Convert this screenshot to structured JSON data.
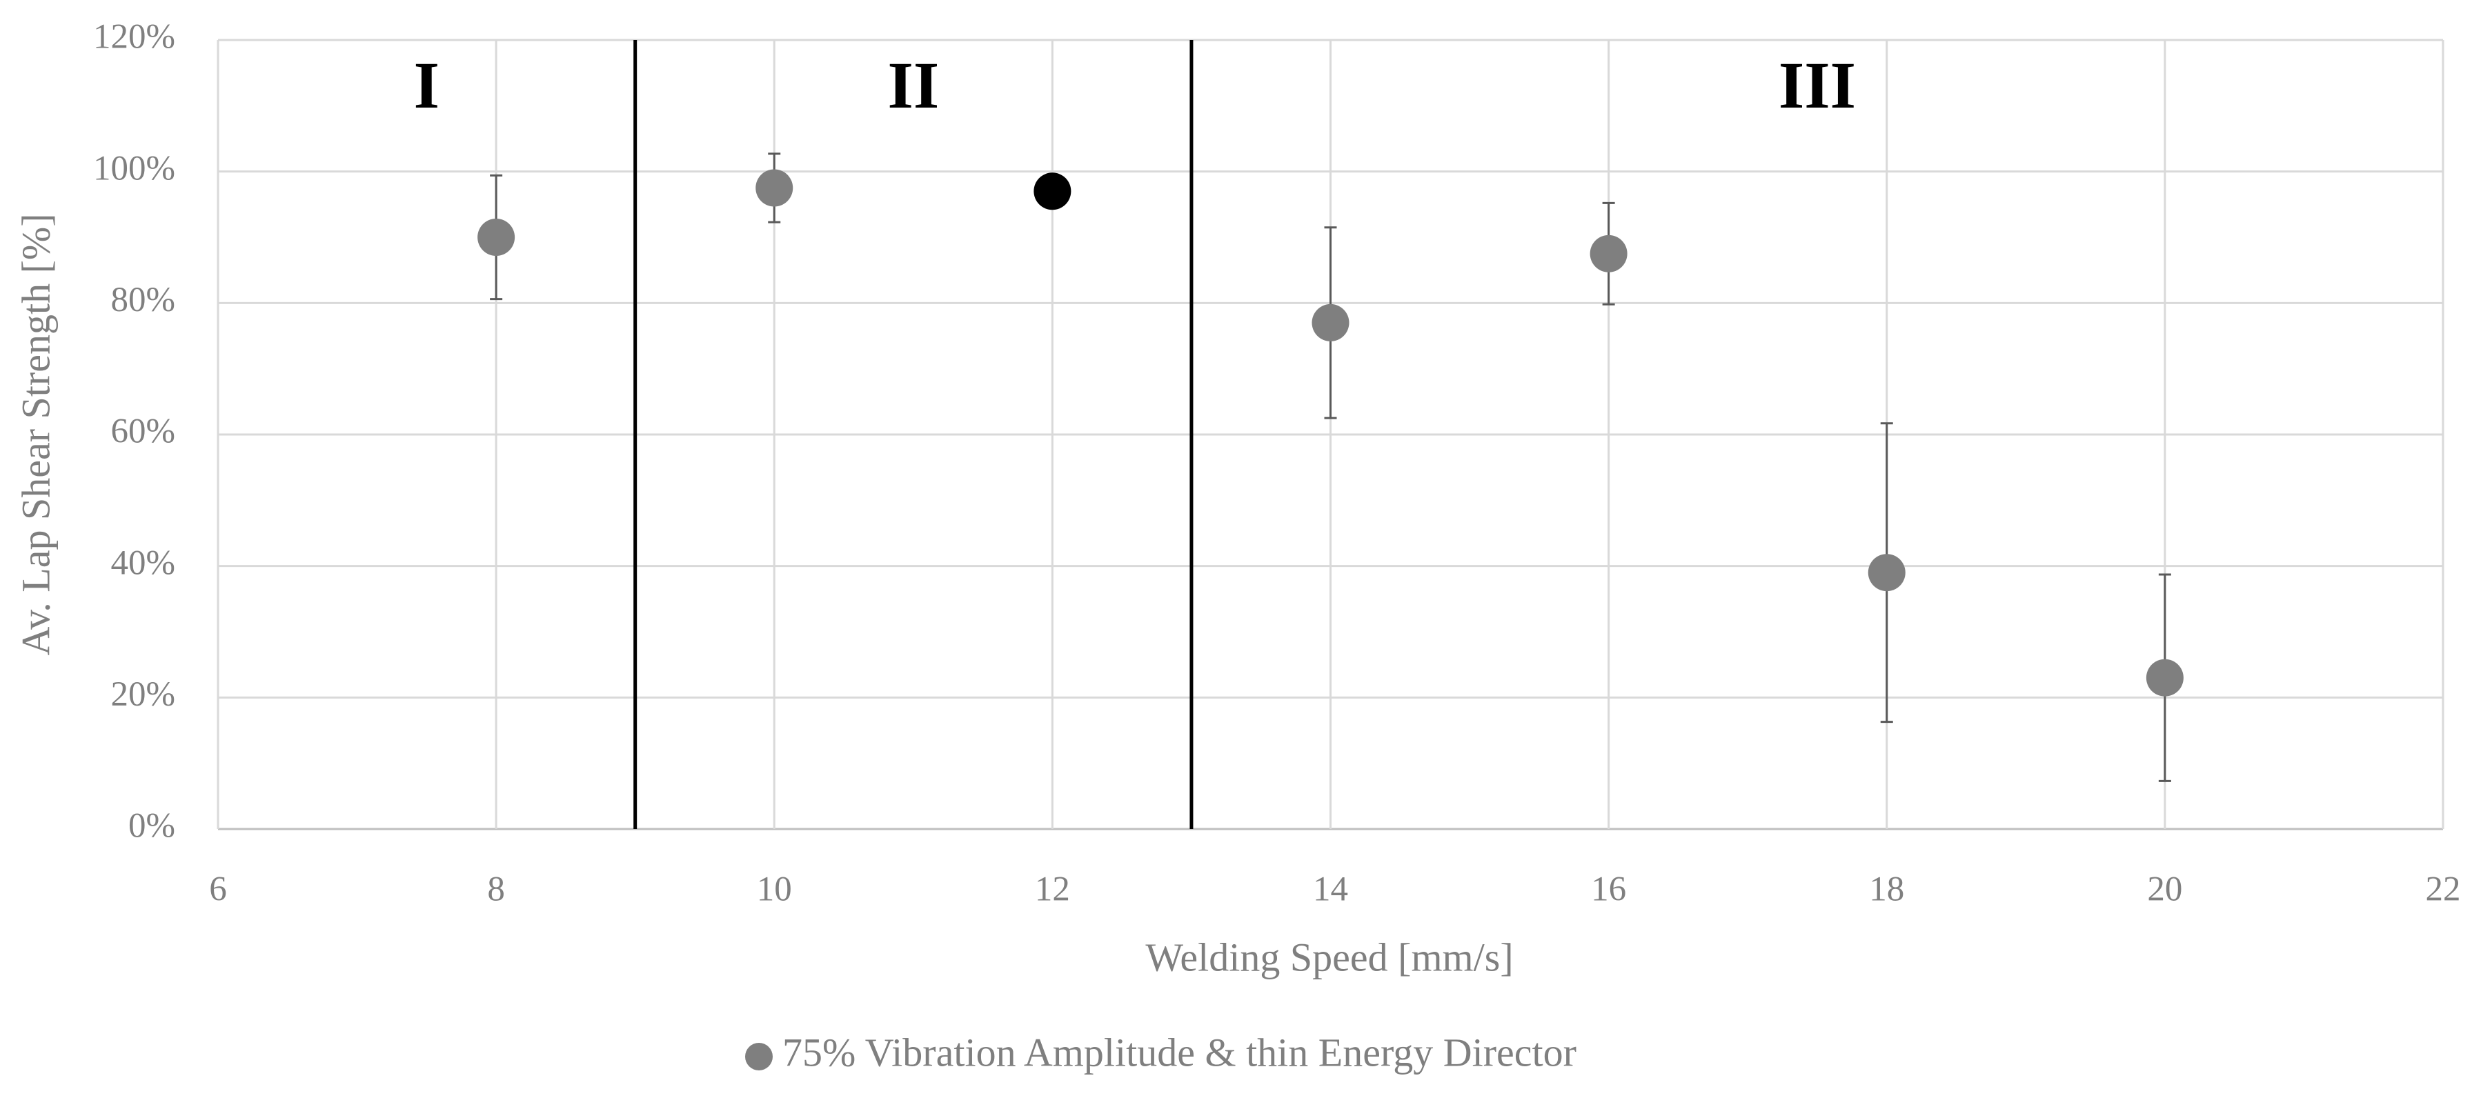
{
  "chart_data": {
    "type": "scatter",
    "x_label": "Welding Speed [mm/s]",
    "y_label": "Av. Lap Shear Strength [%]",
    "xlim": [
      6,
      22
    ],
    "xticks": [
      6,
      8,
      10,
      12,
      14,
      16,
      18,
      20,
      22
    ],
    "ylim": [
      0,
      120
    ],
    "yticks": [
      {
        "value": 0,
        "label": "0%"
      },
      {
        "value": 20,
        "label": "20%"
      },
      {
        "value": 40,
        "label": "40%"
      },
      {
        "value": 60,
        "label": "60%"
      },
      {
        "value": 80,
        "label": "80%"
      },
      {
        "value": 100,
        "label": "100%"
      },
      {
        "value": 120,
        "label": "120%"
      }
    ],
    "grid": true,
    "legend": "bottom",
    "regions": [
      {
        "label": "I",
        "xlim": [
          6,
          9
        ]
      },
      {
        "label": "II",
        "xlim": [
          9,
          13
        ]
      },
      {
        "label": "III",
        "xlim": [
          13,
          22
        ]
      }
    ],
    "series": [
      {
        "name": "75% Vibration Amplitude & thin Energy Director",
        "color": "#7f7f7f",
        "x": [
          8,
          10,
          12,
          14,
          16,
          18,
          20
        ],
        "values": [
          90,
          97.5,
          97,
          77,
          87.5,
          39,
          23
        ],
        "errors": [
          9.4,
          5.2,
          null,
          14.5,
          7.7,
          22.7,
          15.7
        ],
        "point_colors": [
          "#7f7f7f",
          "#7f7f7f",
          "#000000",
          "#7f7f7f",
          "#7f7f7f",
          "#7f7f7f",
          "#7f7f7f"
        ]
      }
    ]
  }
}
